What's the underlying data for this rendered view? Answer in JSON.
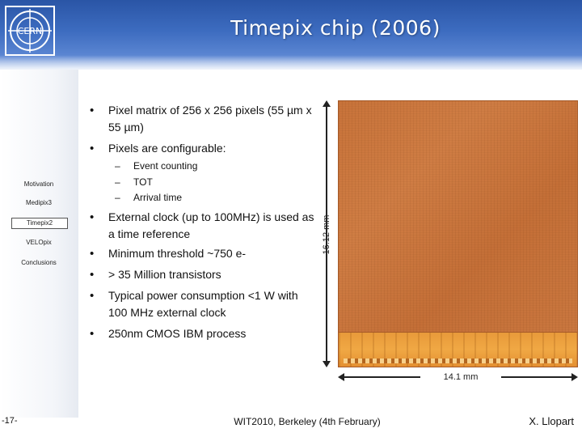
{
  "slide": {
    "title": "Timepix chip (2006)",
    "logo_text": "CERN"
  },
  "sidebar": {
    "items": [
      {
        "label": "Motivation",
        "active": false
      },
      {
        "label": "Medipix3",
        "active": false
      },
      {
        "label": "Timepix2",
        "active": true
      },
      {
        "label": "VELOpix",
        "active": false
      },
      {
        "label": "Conclusions",
        "active": false
      }
    ]
  },
  "content": {
    "bullets": [
      {
        "text": "Pixel matrix of 256 x 256 pixels (55 µm x 55 µm)"
      },
      {
        "text": "Pixels are configurable:",
        "sub": [
          "Event counting",
          "TOT",
          "Arrival time"
        ]
      },
      {
        "text": "External  clock (up to 100MHz) is used as a time reference"
      },
      {
        "text": "Minimum threshold ~750 e-"
      },
      {
        "text": "> 35 Million transistors"
      },
      {
        "text": "Typical power consumption <1 W with 100 MHz external clock"
      },
      {
        "text": "250nm CMOS IBM process"
      }
    ]
  },
  "figure": {
    "height_label": "16.12 mm",
    "width_label": "14.1 mm"
  },
  "footer": {
    "page_number": "-17-",
    "event": "WIT2010, Berkeley (4th February)",
    "author": "X. Llopart"
  }
}
